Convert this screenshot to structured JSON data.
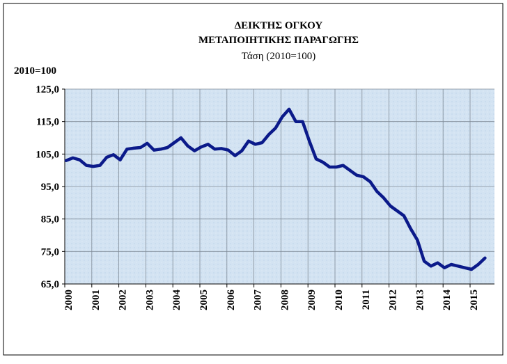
{
  "chart_data": {
    "type": "line",
    "title": "ΔΕΙΚΤΗΣ ΟΓΚΟΥ",
    "subtitle": "ΜΕΤΑΠΟΙΗΤΙΚΗΣ ΠΑΡΑΓΩΓΗΣ",
    "subtitle2": "Τάση (2010=100)",
    "y_label": "2010=100",
    "categories": [
      "2000",
      null,
      null,
      null,
      "2001",
      null,
      null,
      null,
      "2002",
      null,
      null,
      null,
      "2003",
      null,
      null,
      null,
      "2004",
      null,
      null,
      null,
      "2005",
      null,
      null,
      null,
      "2006",
      null,
      null,
      null,
      "2007",
      null,
      null,
      null,
      "2008",
      null,
      null,
      null,
      "2009",
      null,
      null,
      null,
      "2010",
      null,
      null,
      null,
      "2011",
      null,
      null,
      null,
      "2012",
      null,
      null,
      null,
      "2013",
      null,
      null,
      null,
      "2014",
      null,
      null,
      null,
      "2015",
      null,
      null
    ],
    "series": [
      {
        "color": "#0b1a8a",
        "values": [
          103,
          103.8,
          103.2,
          101.5,
          101.2,
          101.5,
          104,
          104.8,
          103.2,
          106.5,
          106.8,
          107,
          108.3,
          106.2,
          106.5,
          107,
          108.5,
          110,
          107.5,
          106,
          107.2,
          108,
          106.5,
          106.7,
          106.2,
          104.5,
          106,
          109,
          108,
          108.5,
          111,
          113,
          116.5,
          118.8,
          115,
          115,
          109,
          103.5,
          102.5,
          101,
          101,
          101.5,
          100,
          98.5,
          98,
          96.5,
          93.5,
          91.5,
          89,
          87.5,
          86,
          82,
          78.5,
          72,
          70.5,
          71.5,
          70,
          71,
          70.5,
          70,
          69.5,
          71,
          73
        ]
      }
    ],
    "ylim": [
      65,
      125
    ],
    "yticks": [
      {
        "value": 65,
        "label": "65,0"
      },
      {
        "value": 75,
        "label": "75,0"
      },
      {
        "value": 85,
        "label": "85,0"
      },
      {
        "value": 95,
        "label": "95,0"
      },
      {
        "value": 105,
        "label": "105,0"
      },
      {
        "value": 115,
        "label": "115,0"
      },
      {
        "value": 125,
        "label": "125,0"
      }
    ],
    "grid": true
  }
}
